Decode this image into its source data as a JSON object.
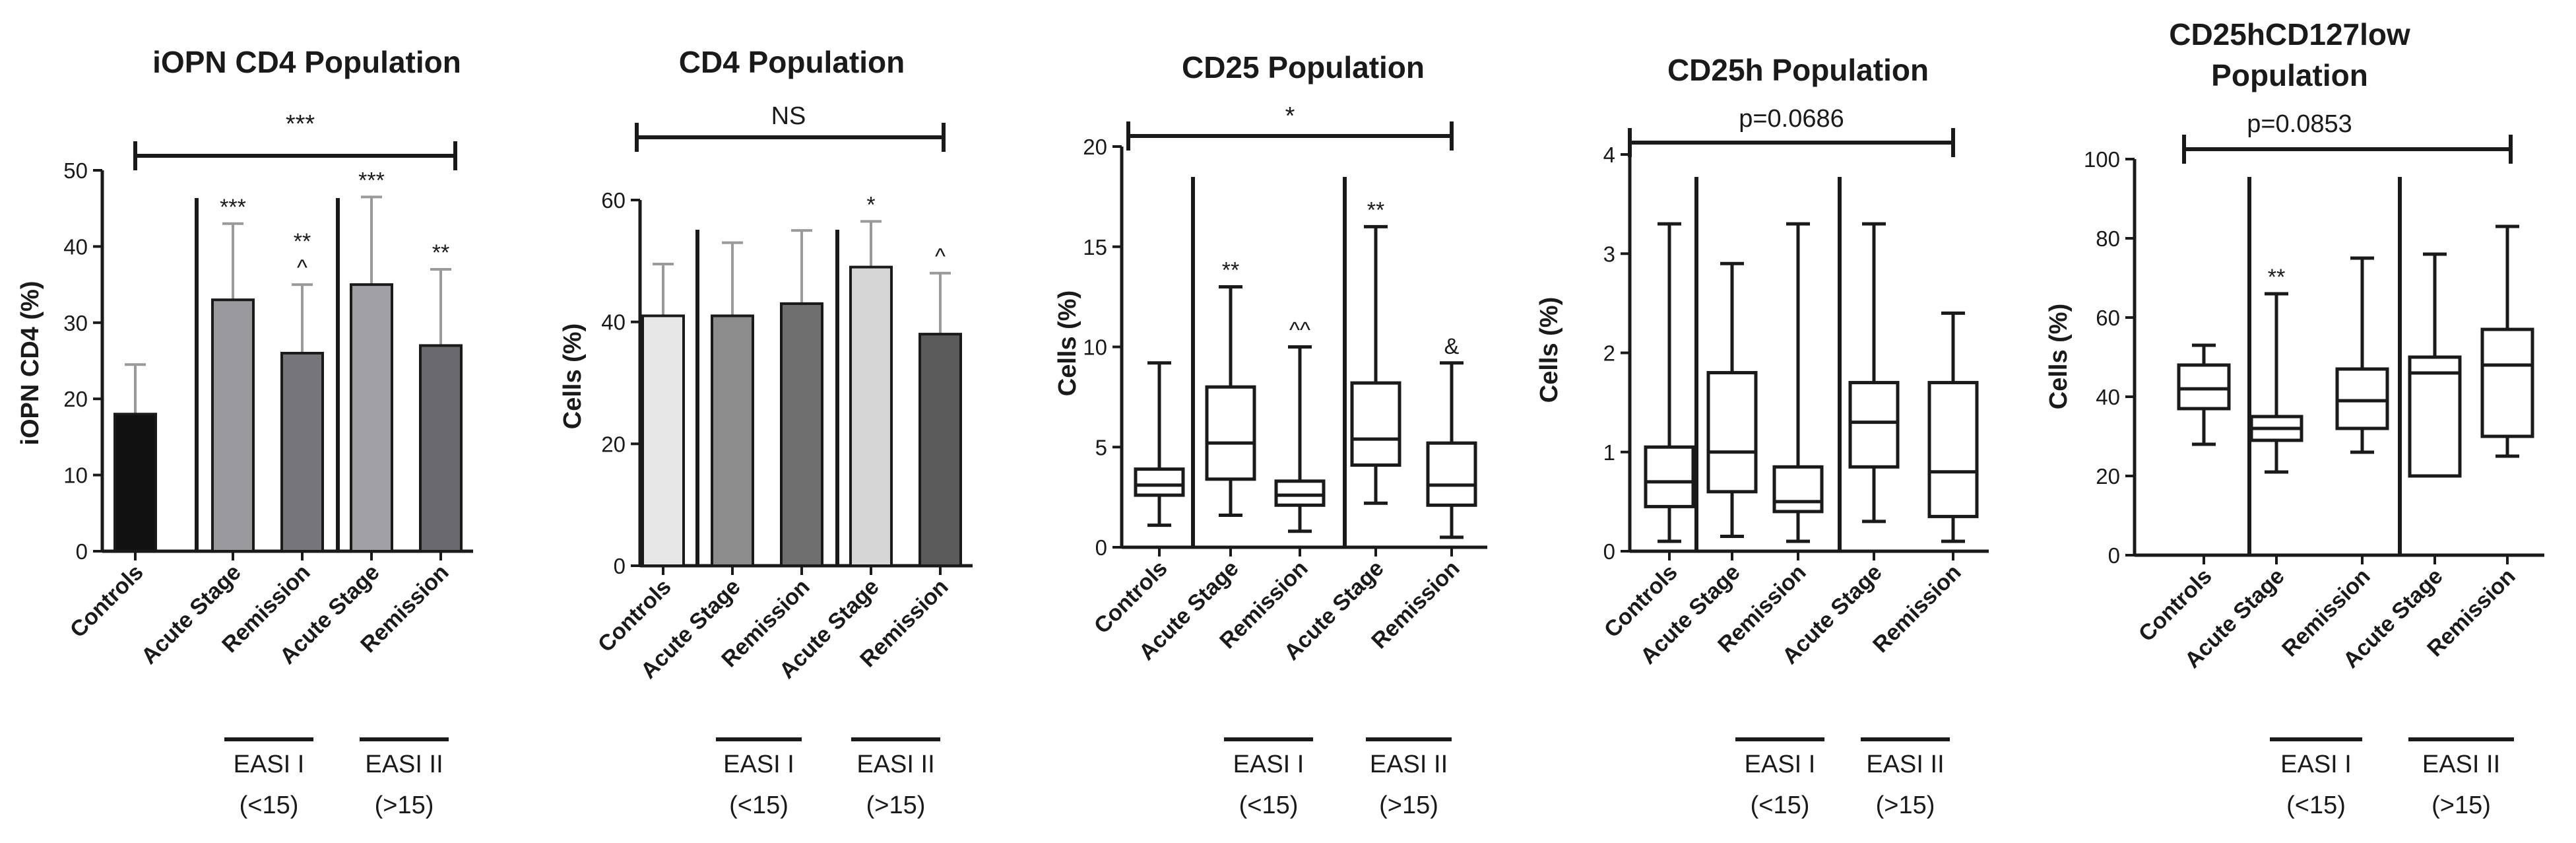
{
  "chart_data": [
    {
      "type": "bar",
      "title": [
        "iOPN CD4 Population"
      ],
      "ylabel": "iOPN CD4 (%)",
      "ylim": [
        0,
        50
      ],
      "yticks": [
        "0",
        "10",
        "20",
        "30",
        "40",
        "50"
      ],
      "categories": [
        "Controls",
        "Acute Stage",
        "Remission",
        "Acute Stage",
        "Remission"
      ],
      "values": [
        18,
        33,
        26,
        35,
        27
      ],
      "errors": [
        24.5,
        43,
        35,
        46.5,
        37
      ],
      "colors": [
        "#111111",
        "#9a9a9e",
        "#76767a",
        "#a0a0a4",
        "#6a6a6e"
      ],
      "annotations": [
        [
          "",
          "",
          ""
        ],
        [
          "***",
          "",
          ""
        ],
        [
          "^",
          "**",
          ""
        ],
        [
          "***",
          "",
          ""
        ],
        [
          "**",
          "",
          ""
        ]
      ],
      "bracket_label": "***",
      "groups": [
        {
          "line1": "EASI I",
          "line2": "(<15)"
        },
        {
          "line1": "EASI II",
          "line2": "(>15)"
        }
      ]
    },
    {
      "type": "bar",
      "title": [
        "CD4 Population"
      ],
      "ylabel": "Cells (%)",
      "ylim": [
        0,
        60
      ],
      "yticks": [
        "0",
        "20",
        "40",
        "60"
      ],
      "categories": [
        "Controls",
        "Acute Stage",
        "Remission",
        "Acute Stage",
        "Remission"
      ],
      "values": [
        41,
        41,
        43,
        49,
        38
      ],
      "errors": [
        49.5,
        53,
        55,
        56.5,
        48
      ],
      "colors": [
        "#e6e6e6",
        "#8c8c8c",
        "#6e6e6e",
        "#d6d6d6",
        "#5a5a5a"
      ],
      "annotations": [
        [
          "",
          "",
          ""
        ],
        [
          "",
          "",
          ""
        ],
        [
          "",
          "",
          ""
        ],
        [
          "*",
          "",
          ""
        ],
        [
          "^",
          "",
          ""
        ]
      ],
      "bracket_label": "NS",
      "groups": [
        {
          "line1": "EASI I",
          "line2": "(<15)"
        },
        {
          "line1": "EASI II",
          "line2": "(>15)"
        }
      ]
    },
    {
      "type": "box",
      "title": [
        "CD25 Population"
      ],
      "ylabel": "Cells (%)",
      "ylim": [
        0,
        20
      ],
      "yticks": [
        "0",
        "5",
        "10",
        "15",
        "20"
      ],
      "categories": [
        "Controls",
        "Acute Stage",
        "Remission",
        "Acute Stage",
        "Remission"
      ],
      "boxes": [
        {
          "min": 1.1,
          "q1": 2.6,
          "median": 3.1,
          "q3": 3.9,
          "max": 9.2
        },
        {
          "min": 1.6,
          "q1": 3.4,
          "median": 5.2,
          "q3": 8.0,
          "max": 13.0
        },
        {
          "min": 0.8,
          "q1": 2.1,
          "median": 2.6,
          "q3": 3.3,
          "max": 10.0
        },
        {
          "min": 2.2,
          "q1": 4.1,
          "median": 5.4,
          "q3": 8.2,
          "max": 16.0
        },
        {
          "min": 0.5,
          "q1": 2.1,
          "median": 3.1,
          "q3": 5.2,
          "max": 9.2
        }
      ],
      "annotations": [
        [
          "",
          "",
          ""
        ],
        [
          "**",
          "",
          ""
        ],
        [
          "^^",
          "",
          ""
        ],
        [
          "**",
          "",
          ""
        ],
        [
          "&",
          "",
          ""
        ]
      ],
      "bracket_label": "*",
      "groups": [
        {
          "line1": "EASI I",
          "line2": "(<15)"
        },
        {
          "line1": "EASI II",
          "line2": "(>15)"
        }
      ]
    },
    {
      "type": "box",
      "title": [
        "CD25h Population"
      ],
      "ylabel": "Cells (%)",
      "ylim": [
        0,
        4
      ],
      "yticks": [
        "0",
        "1",
        "2",
        "3",
        "4"
      ],
      "categories": [
        "Controls",
        "Acute Stage",
        "Remission",
        "Acute Stage",
        "Remission"
      ],
      "boxes": [
        {
          "min": 0.1,
          "q1": 0.45,
          "median": 0.7,
          "q3": 1.05,
          "max": 3.3
        },
        {
          "min": 0.15,
          "q1": 0.6,
          "median": 1.0,
          "q3": 1.8,
          "max": 2.9
        },
        {
          "min": 0.1,
          "q1": 0.4,
          "median": 0.5,
          "q3": 0.85,
          "max": 3.3
        },
        {
          "min": 0.3,
          "q1": 0.85,
          "median": 1.3,
          "q3": 1.7,
          "max": 3.3
        },
        {
          "min": 0.1,
          "q1": 0.35,
          "median": 0.8,
          "q3": 1.7,
          "max": 2.4
        }
      ],
      "annotations": [
        [
          "",
          "",
          ""
        ],
        [
          "",
          "",
          ""
        ],
        [
          "",
          "",
          ""
        ],
        [
          "",
          "",
          ""
        ],
        [
          "",
          "",
          ""
        ]
      ],
      "bracket_label": "p=0.0686",
      "groups": [
        {
          "line1": "EASI I",
          "line2": "(<15)"
        },
        {
          "line1": "EASI II",
          "line2": "(>15)"
        }
      ]
    },
    {
      "type": "box",
      "title": [
        "CD25hCD127low",
        "Population"
      ],
      "ylabel": "Cells (%)",
      "ylim": [
        0,
        100
      ],
      "yticks": [
        "0",
        "20",
        "40",
        "60",
        "80",
        "100"
      ],
      "categories": [
        "Controls",
        "Acute Stage",
        "Remission",
        "Acute Stage",
        "Remission"
      ],
      "boxes": [
        {
          "min": 28,
          "q1": 37,
          "median": 42,
          "q3": 48,
          "max": 53
        },
        {
          "min": 21,
          "q1": 29,
          "median": 32,
          "q3": 35,
          "max": 66
        },
        {
          "min": 26,
          "q1": 32,
          "median": 39,
          "q3": 47,
          "max": 75
        },
        {
          "min": 20,
          "q1": 20,
          "median": 46,
          "q3": 50,
          "max": 76
        },
        {
          "min": 25,
          "q1": 30,
          "median": 48,
          "q3": 57,
          "max": 83
        }
      ],
      "annotations": [
        [
          "",
          "",
          ""
        ],
        [
          "**",
          "",
          ""
        ],
        [
          "",
          "",
          ""
        ],
        [
          "",
          "",
          ""
        ],
        [
          "",
          "",
          ""
        ]
      ],
      "bracket_label": "p=0.0853",
      "groups": [
        {
          "line1": "EASI I",
          "line2": "(<15)"
        },
        {
          "line1": "EASI II",
          "line2": "(>15)"
        }
      ]
    }
  ]
}
